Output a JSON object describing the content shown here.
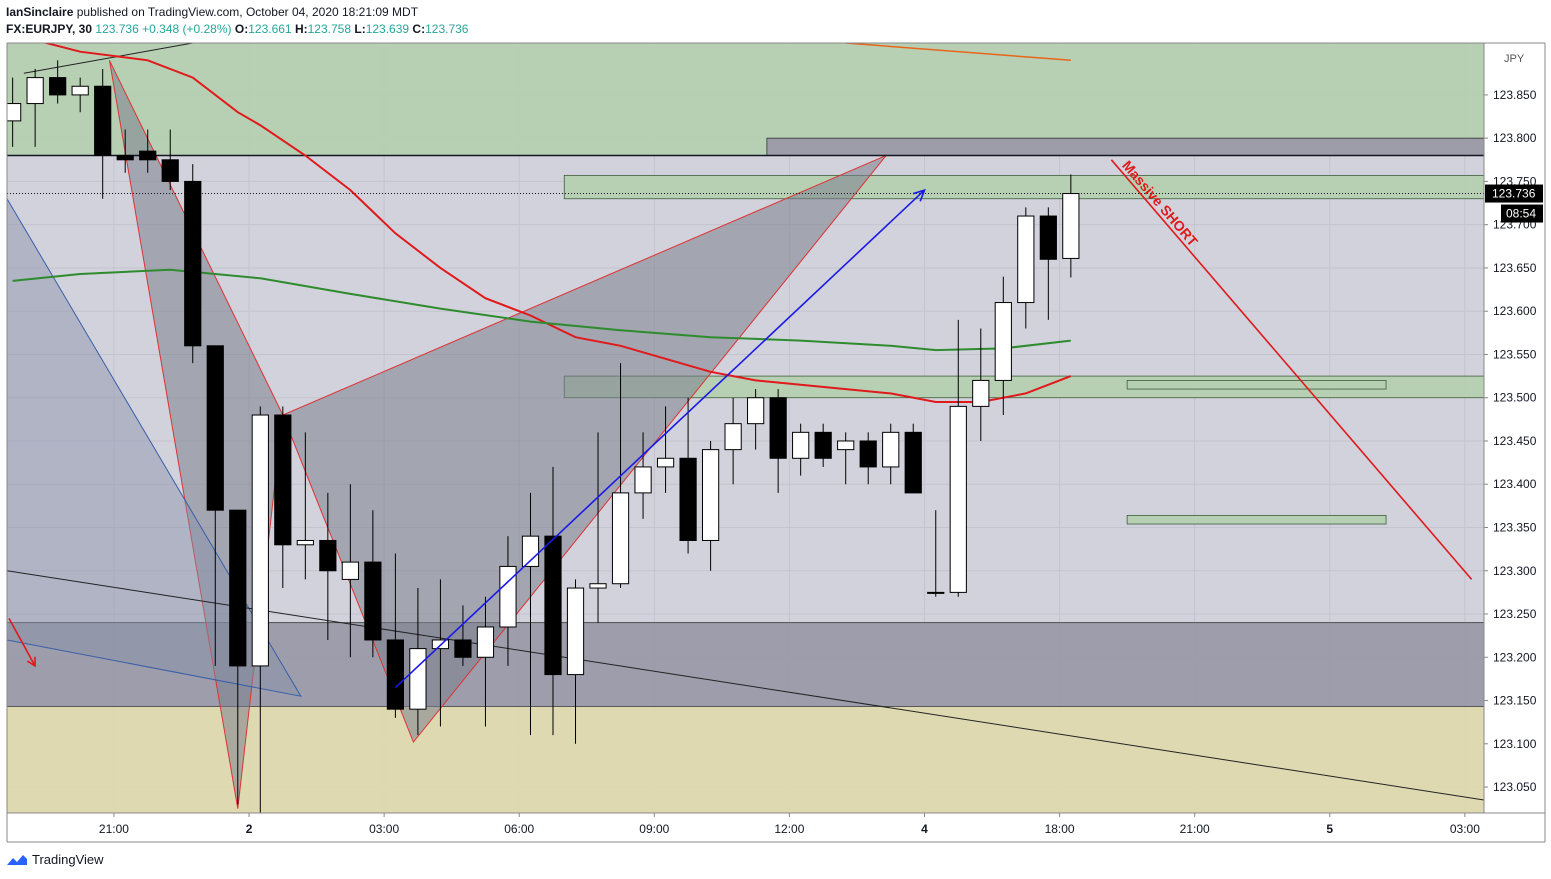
{
  "header": {
    "author": "IanSinclaire",
    "published_text": "published on TradingView.com, October 04, 2020 18:21:09 MDT",
    "symbol": "FX:EURJPY, 30",
    "last": "123.736",
    "change": "+0.348 (+0.28%)",
    "o_label": "O:",
    "o_value": "123.661",
    "h_label": "H:",
    "h_value": "123.758",
    "l_label": "L:",
    "l_value": "123.639",
    "c_label": "C:",
    "c_value": "123.736"
  },
  "price_axis": {
    "currency": "JPY",
    "last_price_tag": "123.736",
    "countdown_tag": "08:54"
  },
  "annotation": {
    "text": "Massive SHORT"
  },
  "footer": {
    "brand": "TradingView"
  },
  "colors": {
    "up_candle": "#ffffff",
    "down_candle": "#000000",
    "green_zone": "#b5cfb0",
    "dark_zone": "#9a9aa8",
    "yellow_zone": "#ded9ae",
    "red_line": "#e0191b",
    "green_ma": "#2e8b2e",
    "blue_arrow": "#1a1ae6"
  },
  "chart_data": {
    "type": "candlestick",
    "ylim": [
      123.02,
      123.91
    ],
    "yticks": [
      123.05,
      123.1,
      123.15,
      123.2,
      123.25,
      123.3,
      123.35,
      123.4,
      123.45,
      123.5,
      123.55,
      123.6,
      123.65,
      123.7,
      123.75,
      123.8,
      123.85
    ],
    "ytick_labels": [
      "123.050",
      "123.100",
      "123.150",
      "123.200",
      "123.250",
      "123.300",
      "123.350",
      "123.400",
      "123.450",
      "123.500",
      "123.550",
      "123.600",
      "123.650",
      "123.700",
      "123.750",
      "123.800",
      "123.850"
    ],
    "xtick_labels": [
      {
        "bar": 4.5,
        "label": "21:00",
        "bold": false
      },
      {
        "bar": 10.5,
        "label": "2",
        "bold": true
      },
      {
        "bar": 16.5,
        "label": "03:00",
        "bold": false
      },
      {
        "bar": 22.5,
        "label": "06:00",
        "bold": false
      },
      {
        "bar": 28.5,
        "label": "09:00",
        "bold": false
      },
      {
        "bar": 34.5,
        "label": "12:00",
        "bold": false
      },
      {
        "bar": 40.5,
        "label": "4",
        "bold": true
      },
      {
        "bar": 46.5,
        "label": "18:00",
        "bold": false
      },
      {
        "bar": 52.5,
        "label": "21:00",
        "bold": false
      },
      {
        "bar": 58.5,
        "label": "5",
        "bold": true
      },
      {
        "bar": 64.5,
        "label": "03:00",
        "bold": false
      }
    ],
    "candles": [
      {
        "o": 123.82,
        "h": 123.87,
        "l": 123.79,
        "c": 123.84
      },
      {
        "o": 123.84,
        "h": 123.88,
        "l": 123.79,
        "c": 123.87
      },
      {
        "o": 123.87,
        "h": 123.89,
        "l": 123.84,
        "c": 123.85
      },
      {
        "o": 123.85,
        "h": 123.87,
        "l": 123.83,
        "c": 123.86
      },
      {
        "o": 123.86,
        "h": 123.88,
        "l": 123.73,
        "c": 123.78
      },
      {
        "o": 123.78,
        "h": 123.81,
        "l": 123.76,
        "c": 123.775
      },
      {
        "o": 123.785,
        "h": 123.81,
        "l": 123.76,
        "c": 123.775
      },
      {
        "o": 123.775,
        "h": 123.81,
        "l": 123.74,
        "c": 123.75
      },
      {
        "o": 123.75,
        "h": 123.77,
        "l": 123.54,
        "c": 123.56
      },
      {
        "o": 123.56,
        "h": 123.56,
        "l": 123.19,
        "c": 123.37
      },
      {
        "o": 123.37,
        "h": 123.37,
        "l": 123.03,
        "c": 123.19
      },
      {
        "o": 123.19,
        "h": 123.49,
        "l": 123.02,
        "c": 123.48
      },
      {
        "o": 123.48,
        "h": 123.49,
        "l": 123.28,
        "c": 123.33
      },
      {
        "o": 123.33,
        "h": 123.46,
        "l": 123.29,
        "c": 123.335
      },
      {
        "o": 123.335,
        "h": 123.39,
        "l": 123.22,
        "c": 123.3
      },
      {
        "o": 123.29,
        "h": 123.4,
        "l": 123.2,
        "c": 123.31
      },
      {
        "o": 123.31,
        "h": 123.37,
        "l": 123.2,
        "c": 123.22
      },
      {
        "o": 123.22,
        "h": 123.32,
        "l": 123.13,
        "c": 123.14
      },
      {
        "o": 123.14,
        "h": 123.28,
        "l": 123.11,
        "c": 123.21
      },
      {
        "o": 123.21,
        "h": 123.29,
        "l": 123.12,
        "c": 123.22
      },
      {
        "o": 123.22,
        "h": 123.26,
        "l": 123.19,
        "c": 123.2
      },
      {
        "o": 123.2,
        "h": 123.27,
        "l": 123.12,
        "c": 123.235
      },
      {
        "o": 123.235,
        "h": 123.34,
        "l": 123.19,
        "c": 123.305
      },
      {
        "o": 123.305,
        "h": 123.39,
        "l": 123.11,
        "c": 123.34
      },
      {
        "o": 123.34,
        "h": 123.42,
        "l": 123.11,
        "c": 123.18
      },
      {
        "o": 123.18,
        "h": 123.29,
        "l": 123.1,
        "c": 123.28
      },
      {
        "o": 123.28,
        "h": 123.46,
        "l": 123.24,
        "c": 123.285
      },
      {
        "o": 123.285,
        "h": 123.54,
        "l": 123.28,
        "c": 123.39
      },
      {
        "o": 123.39,
        "h": 123.46,
        "l": 123.36,
        "c": 123.42
      },
      {
        "o": 123.42,
        "h": 123.49,
        "l": 123.39,
        "c": 123.43
      },
      {
        "o": 123.43,
        "h": 123.5,
        "l": 123.32,
        "c": 123.335
      },
      {
        "o": 123.335,
        "h": 123.45,
        "l": 123.3,
        "c": 123.44
      },
      {
        "o": 123.44,
        "h": 123.5,
        "l": 123.4,
        "c": 123.47
      },
      {
        "o": 123.47,
        "h": 123.51,
        "l": 123.44,
        "c": 123.5
      },
      {
        "o": 123.5,
        "h": 123.51,
        "l": 123.39,
        "c": 123.43
      },
      {
        "o": 123.43,
        "h": 123.47,
        "l": 123.41,
        "c": 123.46
      },
      {
        "o": 123.46,
        "h": 123.47,
        "l": 123.42,
        "c": 123.43
      },
      {
        "o": 123.44,
        "h": 123.46,
        "l": 123.4,
        "c": 123.45
      },
      {
        "o": 123.45,
        "h": 123.46,
        "l": 123.4,
        "c": 123.42
      },
      {
        "o": 123.42,
        "h": 123.47,
        "l": 123.4,
        "c": 123.46
      },
      {
        "o": 123.46,
        "h": 123.47,
        "l": 123.39,
        "c": 123.39
      },
      {
        "o": 123.275,
        "h": 123.37,
        "l": 123.27,
        "c": 123.275
      },
      {
        "o": 123.275,
        "h": 123.59,
        "l": 123.27,
        "c": 123.49
      },
      {
        "o": 123.49,
        "h": 123.58,
        "l": 123.45,
        "c": 123.52
      },
      {
        "o": 123.52,
        "h": 123.64,
        "l": 123.48,
        "c": 123.61
      },
      {
        "o": 123.61,
        "h": 123.72,
        "l": 123.58,
        "c": 123.71
      },
      {
        "o": 123.71,
        "h": 123.72,
        "l": 123.59,
        "c": 123.66
      },
      {
        "o": 123.661,
        "h": 123.758,
        "l": 123.639,
        "c": 123.736
      }
    ],
    "moving_averages": [
      {
        "name": "",
        "color": "#e0191b",
        "points": [
          [
            0,
            123.92
          ],
          [
            3,
            123.9
          ],
          [
            6,
            123.89
          ],
          [
            8,
            123.87
          ],
          [
            10,
            123.83
          ],
          [
            11,
            123.815
          ],
          [
            13,
            123.78
          ],
          [
            15,
            123.74
          ],
          [
            17,
            123.69
          ],
          [
            19,
            123.65
          ],
          [
            21,
            123.615
          ],
          [
            23,
            123.595
          ],
          [
            25,
            123.57
          ],
          [
            27,
            123.56
          ],
          [
            29,
            123.545
          ],
          [
            31,
            123.53
          ],
          [
            33,
            123.52
          ],
          [
            35,
            123.515
          ],
          [
            37,
            123.51
          ],
          [
            39,
            123.505
          ],
          [
            41,
            123.495
          ],
          [
            43,
            123.495
          ],
          [
            45,
            123.505
          ],
          [
            47,
            123.525
          ]
        ]
      },
      {
        "name": "",
        "color": "#2e8b2e",
        "points": [
          [
            0,
            123.635
          ],
          [
            3,
            123.643
          ],
          [
            7,
            123.648
          ],
          [
            11,
            123.638
          ],
          [
            15,
            123.62
          ],
          [
            19,
            123.603
          ],
          [
            23,
            123.588
          ],
          [
            27,
            123.578
          ],
          [
            31,
            123.57
          ],
          [
            35,
            123.566
          ],
          [
            39,
            123.56
          ],
          [
            41,
            123.555
          ],
          [
            44,
            123.557
          ],
          [
            47,
            123.566
          ]
        ]
      }
    ],
    "zones": [
      {
        "kind": "green",
        "x0": 0,
        "x1": 70,
        "top": 123.91,
        "bottom": 123.78
      },
      {
        "kind": "dark",
        "x0": 34,
        "x1": 70,
        "top": 123.8,
        "bottom": 123.78
      },
      {
        "kind": "green",
        "x0": 25,
        "x1": 70,
        "top": 123.757,
        "bottom": 123.73
      },
      {
        "kind": "green",
        "x0": 25,
        "x1": 70,
        "top": 123.525,
        "bottom": 123.5
      },
      {
        "kind": "green",
        "x0": 50,
        "x1": 61,
        "top": 123.52,
        "bottom": 123.51
      },
      {
        "kind": "green",
        "x0": 50,
        "x1": 61,
        "top": 123.364,
        "bottom": 123.354
      },
      {
        "kind": "dark",
        "x0": 0,
        "x1": 70,
        "top": 123.24,
        "bottom": 123.143
      },
      {
        "kind": "yellow",
        "x0": 0,
        "x1": 70,
        "top": 123.143,
        "bottom": 123.02
      }
    ],
    "horizontal_lines": [
      {
        "price": 123.78,
        "style": "solid",
        "color": "#131722"
      },
      {
        "price": 123.736,
        "style": "dotted",
        "color": "#131722"
      }
    ],
    "pattern_points": [
      [
        4.3,
        123.89
      ],
      [
        10,
        123.025
      ],
      [
        12,
        123.48
      ],
      [
        17.8,
        123.102
      ],
      [
        38.8,
        123.78
      ]
    ],
    "arrow": {
      "from": [
        17,
        123.165
      ],
      "to": [
        40.5,
        123.74
      ]
    },
    "short_line": {
      "from": [
        48.8,
        123.775
      ],
      "to": [
        64.8,
        123.29
      ]
    },
    "xlim": [
      -0.25,
      65.35
    ]
  }
}
